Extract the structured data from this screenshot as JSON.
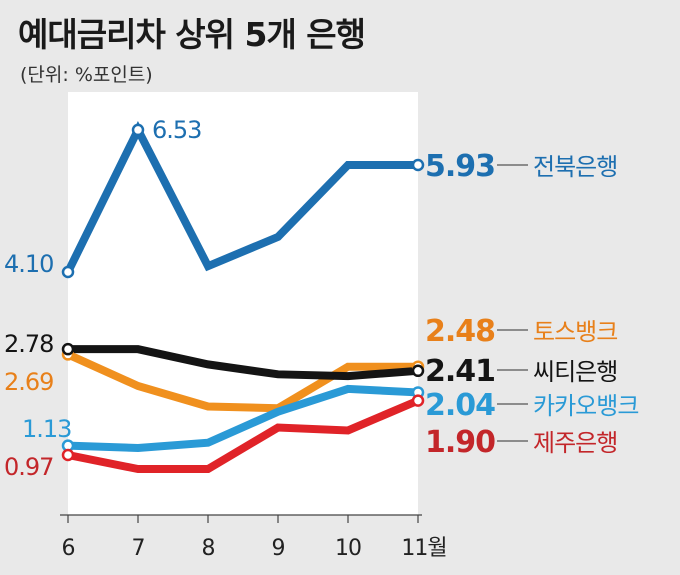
{
  "chart_data": {
    "type": "line",
    "title": "예대금리차 상위 5개 은행",
    "subtitle": "(단위: %포인트)",
    "x": [
      "6",
      "7",
      "8",
      "9",
      "10",
      "11월"
    ],
    "ylim": [
      0.5,
      7.0
    ],
    "series": [
      {
        "name": "전북은행",
        "color": "#1d6fb0",
        "values": [
          4.1,
          6.53,
          4.2,
          4.7,
          5.93,
          5.93
        ],
        "start_label": "4.10",
        "end_label": "5.93",
        "peak_label": "6.53"
      },
      {
        "name": "토스뱅크",
        "color": "#f0901e",
        "values": [
          2.69,
          2.15,
          1.8,
          1.77,
          2.48,
          2.48
        ],
        "start_label": "2.69",
        "end_label": "2.48"
      },
      {
        "name": "씨티은행",
        "color": "#141414",
        "values": [
          2.78,
          2.78,
          2.52,
          2.35,
          2.32,
          2.41
        ],
        "start_label": "2.78",
        "end_label": "2.41"
      },
      {
        "name": "카카오뱅크",
        "color": "#2a9ad6",
        "values": [
          1.13,
          1.09,
          1.18,
          1.71,
          2.1,
          2.04
        ],
        "start_label": "1.13",
        "end_label": "2.04"
      },
      {
        "name": "제주은행",
        "color": "#e02328",
        "values": [
          0.97,
          0.73,
          0.73,
          1.44,
          1.39,
          1.9
        ],
        "start_label": "0.97",
        "end_label": "1.90"
      }
    ]
  }
}
